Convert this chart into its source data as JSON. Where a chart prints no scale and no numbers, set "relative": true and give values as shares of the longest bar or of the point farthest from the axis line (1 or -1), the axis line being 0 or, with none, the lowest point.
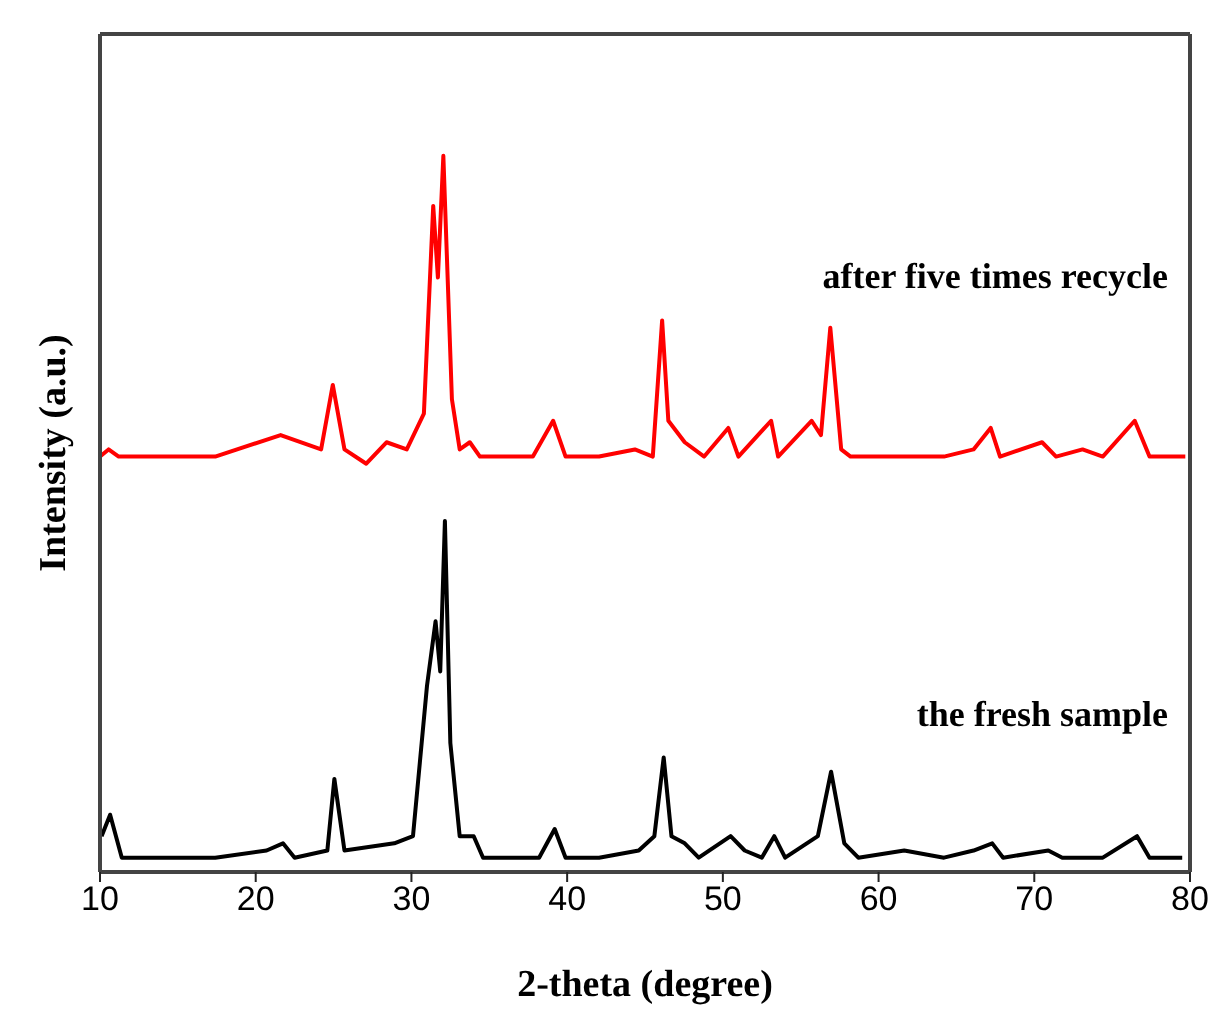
{
  "chart_data": {
    "type": "line",
    "relative": true,
    "xlabel": "2-theta (degree)",
    "ylabel": "Intensity (a.u.)",
    "xlim": [
      10,
      80
    ],
    "xticks": [
      10,
      20,
      30,
      40,
      50,
      60,
      70,
      80
    ],
    "grid": false,
    "marker": "none",
    "line_style": "solid",
    "series": [
      {
        "name": "after five times recycle",
        "color": "#ff0000",
        "x": [
          10.0,
          10.55,
          11.2,
          15.0,
          17.4,
          21.6,
          24.2,
          24.95,
          25.7,
          27.1,
          28.4,
          29.7,
          30.8,
          31.4,
          31.7,
          32.05,
          32.6,
          33.1,
          33.75,
          34.4,
          37.8,
          39.1,
          39.9,
          42.05,
          44.35,
          45.5,
          46.1,
          46.5,
          47.55,
          48.8,
          50.35,
          51.0,
          53.1,
          53.55,
          55.7,
          56.3,
          56.9,
          57.6,
          58.2,
          60.3,
          61.9,
          64.2,
          66.1,
          67.2,
          67.8,
          70.5,
          71.4,
          73.1,
          74.4,
          76.45,
          77.4,
          79.7
        ],
        "values": [
          0.58,
          0.59,
          0.58,
          0.58,
          0.58,
          0.61,
          0.59,
          0.68,
          0.59,
          0.57,
          0.6,
          0.59,
          0.64,
          0.93,
          0.83,
          1.0,
          0.66,
          0.59,
          0.6,
          0.58,
          0.58,
          0.63,
          0.58,
          0.58,
          0.59,
          0.58,
          0.77,
          0.63,
          0.6,
          0.58,
          0.62,
          0.58,
          0.63,
          0.58,
          0.63,
          0.61,
          0.76,
          0.59,
          0.58,
          0.58,
          0.58,
          0.58,
          0.59,
          0.62,
          0.58,
          0.6,
          0.58,
          0.59,
          0.58,
          0.63,
          0.58,
          0.58
        ]
      },
      {
        "name": "the fresh sample",
        "color": "#000000",
        "x": [
          10.1,
          10.65,
          11.4,
          17.4,
          20.7,
          21.75,
          22.5,
          24.6,
          25.05,
          25.7,
          28.9,
          30.1,
          31.0,
          31.55,
          31.85,
          32.15,
          32.5,
          33.1,
          34.0,
          34.6,
          38.2,
          39.2,
          39.9,
          42.05,
          44.6,
          45.6,
          46.2,
          46.7,
          47.55,
          48.45,
          50.5,
          51.4,
          52.5,
          53.3,
          54.0,
          56.1,
          56.95,
          57.8,
          58.7,
          61.65,
          64.2,
          66.1,
          67.3,
          68.0,
          70.9,
          71.8,
          74.4,
          76.6,
          77.4,
          79.5
        ],
        "values": [
          0.05,
          0.08,
          0.02,
          0.02,
          0.03,
          0.04,
          0.02,
          0.03,
          0.13,
          0.03,
          0.04,
          0.05,
          0.26,
          0.35,
          0.28,
          0.49,
          0.18,
          0.05,
          0.05,
          0.02,
          0.02,
          0.06,
          0.02,
          0.02,
          0.03,
          0.05,
          0.16,
          0.05,
          0.04,
          0.02,
          0.05,
          0.03,
          0.02,
          0.05,
          0.02,
          0.05,
          0.14,
          0.04,
          0.02,
          0.03,
          0.02,
          0.03,
          0.04,
          0.02,
          0.03,
          0.02,
          0.02,
          0.05,
          0.02,
          0.02
        ]
      }
    ]
  }
}
